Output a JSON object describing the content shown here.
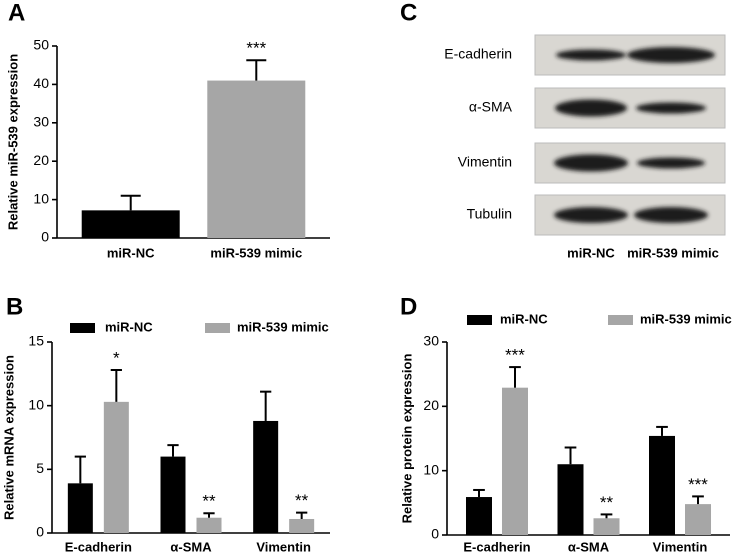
{
  "chart_data": [
    {
      "type": "bar",
      "panel": "A",
      "ylabel": "Relative miR-539 expression",
      "categories": [
        "miR-NC",
        "miR-539 mimic"
      ],
      "values": [
        7.2,
        41
      ],
      "errors": [
        3.8,
        5.3
      ],
      "colors": [
        "#000000",
        "#a6a6a6"
      ],
      "significance": [
        null,
        "***"
      ],
      "ylim": [
        0,
        50
      ],
      "yticks": [
        0,
        10,
        20,
        30,
        40,
        50
      ]
    },
    {
      "type": "grouped_bar",
      "panel": "B",
      "ylabel": "Relative mRNA expression",
      "categories": [
        "E-cadherin",
        "α-SMA",
        "Vimentin"
      ],
      "series": [
        {
          "name": "miR-NC",
          "color": "#000000",
          "values": [
            3.9,
            6.0,
            8.8
          ],
          "errors": [
            2.1,
            0.9,
            2.3
          ],
          "significance": [
            null,
            null,
            null
          ]
        },
        {
          "name": "miR-539 mimic",
          "color": "#a6a6a6",
          "values": [
            10.3,
            1.2,
            1.1
          ],
          "errors": [
            2.5,
            0.35,
            0.5
          ],
          "significance": [
            "*",
            "**",
            "**"
          ]
        }
      ],
      "legend": "top",
      "ylim": [
        0,
        15
      ],
      "yticks": [
        0,
        5,
        10,
        15
      ]
    },
    {
      "type": "grouped_bar",
      "panel": "D",
      "ylabel": "Relative protein expression",
      "categories": [
        "E-cadherin",
        "α-SMA",
        "Vimentin"
      ],
      "series": [
        {
          "name": "miR-NC",
          "color": "#000000",
          "values": [
            5.9,
            11,
            15.4
          ],
          "errors": [
            1.1,
            2.6,
            1.4
          ],
          "significance": [
            null,
            null,
            null
          ]
        },
        {
          "name": "miR-539 mimic",
          "color": "#a6a6a6",
          "values": [
            22.9,
            2.6,
            4.8
          ],
          "errors": [
            3.2,
            0.6,
            1.2
          ],
          "significance": [
            "***",
            "**",
            "***"
          ]
        }
      ],
      "legend": "top",
      "ylim": [
        0,
        30
      ],
      "yticks": [
        0,
        10,
        20,
        30
      ]
    }
  ],
  "blot": {
    "panel": "C",
    "rows": [
      "E-cadherin",
      "α-SMA",
      "Vimentin",
      "Tubulin"
    ],
    "columns": [
      "miR-NC",
      "miR-539 mimic"
    ]
  }
}
